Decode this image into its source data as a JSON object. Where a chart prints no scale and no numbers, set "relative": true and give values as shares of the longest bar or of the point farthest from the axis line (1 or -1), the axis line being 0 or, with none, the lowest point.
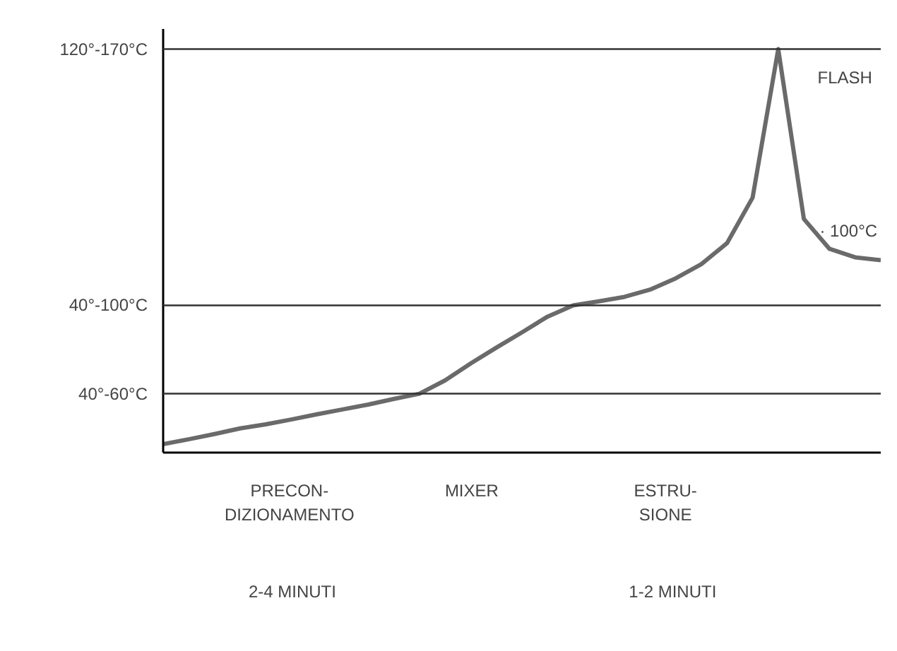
{
  "chart_data": {
    "type": "line",
    "relative": true,
    "categories": [
      null,
      null,
      null,
      null,
      null,
      null,
      null,
      null,
      null,
      null,
      null,
      null,
      null,
      null,
      null,
      null,
      null,
      null,
      null,
      null,
      null,
      null,
      null,
      null,
      null,
      null,
      null,
      null,
      null
    ],
    "grid": false,
    "marker": "none",
    "line_style": "solid",
    "series": [
      {
        "color": "#6a6a6a",
        "values": [
          0.021,
          0.033,
          0.046,
          0.06,
          0.07,
          0.082,
          0.095,
          0.107,
          0.119,
          0.133,
          0.146,
          0.179,
          0.221,
          0.26,
          0.298,
          0.337,
          0.365,
          0.375,
          0.386,
          0.404,
          0.432,
          0.467,
          0.519,
          0.632,
          1.0,
          0.579,
          0.505,
          0.484,
          0.477
        ]
      }
    ],
    "ref_lines": [
      {
        "axis": "y",
        "value": 0.146,
        "label": "40°-60°C"
      },
      {
        "axis": "y",
        "value": 0.365,
        "label": "40°-100°C"
      },
      {
        "axis": "y",
        "value": 1.0,
        "label": "120°-170°C"
      }
    ],
    "annotations": [
      "FLASH",
      "· 100°C",
      "PRECON-\nDIZIONAMENTO",
      "MIXER",
      "ESTRU-\nSIONE",
      "2-4 MINUTI",
      "1-2 MINUTI"
    ]
  }
}
